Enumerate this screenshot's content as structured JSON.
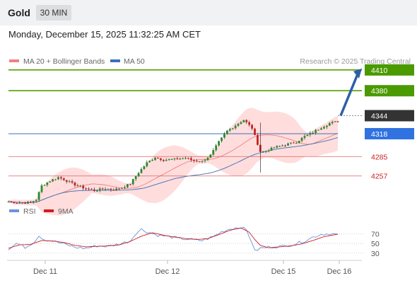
{
  "header": {
    "title": "Gold",
    "timeframe": "30 MIN",
    "datetime": "Monday, December 15, 2025 11:32:25 AM CET"
  },
  "legend": {
    "ma20_label": "MA 20 + Bollinger Bands",
    "ma50_label": "MA 50",
    "source": "Research © 2025 Trading Central"
  },
  "rsi_legend": {
    "rsi_label": "RSI",
    "ma_label": "9MA"
  },
  "colors": {
    "candle_up": "#2a8a2a",
    "candle_down": "#cc2020",
    "bollinger_band": "#ffd2d2",
    "ma20": "#f08080",
    "ma50": "#3d6fb8",
    "target_line": "#55a000",
    "pivot_line": "#3d6fb8",
    "support_line": "#e06060",
    "current_price": "#333333",
    "forecast_arrow": "#2d5fa8",
    "rsi_line": "#6a93dc",
    "rsi_ma": "#cc2020"
  },
  "chart_data": [
    {
      "type": "candlestick",
      "x_labels": [
        "Dec 11",
        "Dec 12",
        "Dec 15",
        "Dec 16"
      ],
      "ylim": [
        4222,
        4418
      ],
      "price_levels": [
        {
          "label": "4410",
          "value": 4410,
          "kind": "target"
        },
        {
          "label": "4380",
          "value": 4380,
          "kind": "target"
        },
        {
          "label": "4344",
          "value": 4344,
          "kind": "current"
        },
        {
          "label": "4318",
          "value": 4318,
          "kind": "pivot"
        },
        {
          "label": "4285",
          "value": 4285,
          "kind": "support"
        },
        {
          "label": "4257",
          "value": 4257,
          "kind": "support"
        }
      ],
      "close_path": [
        [
          0,
          4220
        ],
        [
          5,
          4218
        ],
        [
          8,
          4219
        ],
        [
          10,
          4223
        ],
        [
          12,
          4243
        ],
        [
          15,
          4250
        ],
        [
          18,
          4255
        ],
        [
          20,
          4252
        ],
        [
          23,
          4246
        ],
        [
          27,
          4240
        ],
        [
          31,
          4236
        ],
        [
          35,
          4239
        ],
        [
          38,
          4237
        ],
        [
          41,
          4240
        ],
        [
          44,
          4246
        ],
        [
          47,
          4262
        ],
        [
          50,
          4276
        ],
        [
          53,
          4284
        ],
        [
          56,
          4280
        ],
        [
          60,
          4281
        ],
        [
          64,
          4283
        ],
        [
          67,
          4279
        ],
        [
          70,
          4278
        ],
        [
          73,
          4287
        ],
        [
          76,
          4306
        ],
        [
          79,
          4322
        ],
        [
          82,
          4330
        ],
        [
          85,
          4338
        ],
        [
          88,
          4326
        ],
        [
          91,
          4292
        ],
        [
          93,
          4293
        ],
        [
          96,
          4298
        ],
        [
          100,
          4302
        ],
        [
          104,
          4306
        ],
        [
          107,
          4314
        ],
        [
          110,
          4320
        ],
        [
          113,
          4327
        ],
        [
          116,
          4333
        ],
        [
          119,
          4336
        ]
      ],
      "current": 4344
    },
    {
      "type": "line",
      "title": "RSI",
      "series": [
        {
          "name": "RSI",
          "values": [
            [
              0,
              39
            ],
            [
              3,
              50
            ],
            [
              6,
              42
            ],
            [
              9,
              52
            ],
            [
              11,
              66
            ],
            [
              13,
              58
            ],
            [
              16,
              55
            ],
            [
              20,
              49
            ],
            [
              24,
              42
            ],
            [
              28,
              40
            ],
            [
              32,
              45
            ],
            [
              36,
              44
            ],
            [
              40,
              49
            ],
            [
              44,
              55
            ],
            [
              46,
              71
            ],
            [
              48,
              79
            ],
            [
              50,
              74
            ],
            [
              54,
              67
            ],
            [
              58,
              64
            ],
            [
              62,
              60
            ],
            [
              66,
              58
            ],
            [
              70,
              56
            ],
            [
              74,
              64
            ],
            [
              77,
              74
            ],
            [
              80,
              80
            ],
            [
              84,
              84
            ],
            [
              86,
              77
            ],
            [
              88,
              52
            ],
            [
              89,
              34
            ],
            [
              91,
              40
            ],
            [
              95,
              43
            ],
            [
              99,
              44
            ],
            [
              103,
              48
            ],
            [
              107,
              55
            ],
            [
              110,
              63
            ],
            [
              113,
              69
            ],
            [
              116,
              70
            ],
            [
              119,
              68
            ]
          ]
        },
        {
          "name": "9MA",
          "values": [
            [
              0,
              40
            ],
            [
              4,
              47
            ],
            [
              8,
              48
            ],
            [
              12,
              56
            ],
            [
              16,
              55
            ],
            [
              20,
              52
            ],
            [
              24,
              46
            ],
            [
              28,
              43
            ],
            [
              32,
              44
            ],
            [
              36,
              45
            ],
            [
              40,
              47
            ],
            [
              44,
              54
            ],
            [
              48,
              65
            ],
            [
              52,
              72
            ],
            [
              56,
              67
            ],
            [
              60,
              63
            ],
            [
              64,
              60
            ],
            [
              68,
              58
            ],
            [
              72,
              60
            ],
            [
              76,
              68
            ],
            [
              80,
              77
            ],
            [
              84,
              82
            ],
            [
              87,
              73
            ],
            [
              89,
              58
            ],
            [
              91,
              46
            ],
            [
              94,
              41
            ],
            [
              98,
              43
            ],
            [
              102,
              45
            ],
            [
              106,
              49
            ],
            [
              110,
              56
            ],
            [
              114,
              64
            ],
            [
              119,
              69
            ]
          ]
        }
      ],
      "y_ticks": [
        "70",
        "50",
        "30"
      ],
      "ylim": [
        18,
        88
      ]
    }
  ]
}
